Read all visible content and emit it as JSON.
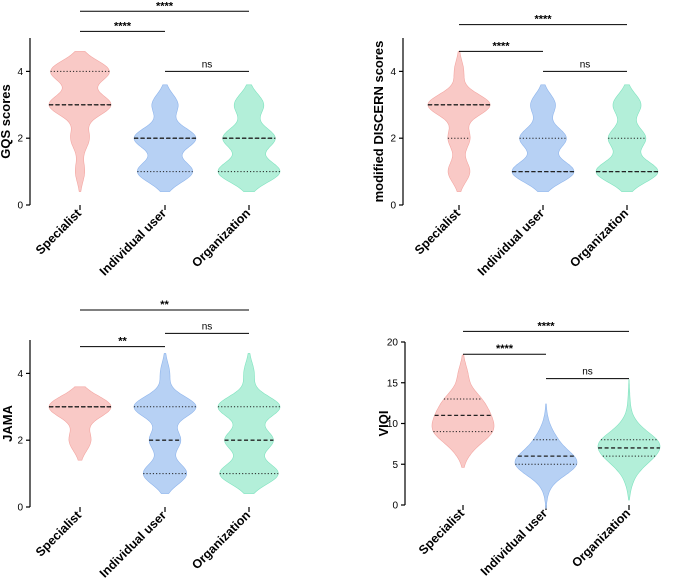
{
  "chart_data": [
    {
      "type": "violin",
      "ylabel": "GQS scores",
      "categories": [
        "Specialist",
        "Individual user",
        "Organization"
      ],
      "yticks": [
        0,
        2,
        4
      ],
      "ylim": [
        0,
        5
      ],
      "colors": [
        "#f9c9c6",
        "#b7d1f4",
        "#b3efd9"
      ],
      "series": [
        {
          "name": "Specialist",
          "densities": [
            [
              1,
              0.15
            ],
            [
              2,
              0.3
            ],
            [
              3,
              1
            ],
            [
              4,
              0.95
            ]
          ],
          "median": 3,
          "quartiles": [
            3,
            4
          ]
        },
        {
          "name": "Individual user",
          "densities": [
            [
              1,
              0.85
            ],
            [
              2,
              0.95
            ],
            [
              3,
              0.4
            ]
          ],
          "median": 2,
          "quartiles": [
            1,
            2
          ]
        },
        {
          "name": "Organization",
          "densities": [
            [
              1,
              0.95
            ],
            [
              2,
              0.8
            ],
            [
              3,
              0.45
            ]
          ],
          "median": 2,
          "quartiles": [
            1,
            2
          ]
        }
      ],
      "comparisons": [
        {
          "from": 0,
          "to": 1,
          "label": "****",
          "y": 5.2
        },
        {
          "from": 1,
          "to": 2,
          "label": "ns",
          "y": 4
        },
        {
          "from": 0,
          "to": 2,
          "label": "****",
          "y": 5.8
        }
      ]
    },
    {
      "type": "violin",
      "ylabel": "modified DISCERN scores",
      "categories": [
        "Specialist",
        "Individual user",
        "Organization"
      ],
      "yticks": [
        0,
        2,
        4
      ],
      "ylim": [
        0,
        5
      ],
      "colors": [
        "#f9c9c6",
        "#b7d1f4",
        "#b3efd9"
      ],
      "series": [
        {
          "name": "Specialist",
          "densities": [
            [
              1,
              0.35
            ],
            [
              2,
              0.35
            ],
            [
              3,
              1
            ],
            [
              4,
              0.15
            ]
          ],
          "median": 3,
          "quartiles": [
            2,
            3
          ]
        },
        {
          "name": "Individual user",
          "densities": [
            [
              1,
              1
            ],
            [
              2,
              0.75
            ],
            [
              3,
              0.4
            ]
          ],
          "median": 1,
          "quartiles": [
            1,
            2
          ]
        },
        {
          "name": "Organization",
          "densities": [
            [
              1,
              1
            ],
            [
              2,
              0.6
            ],
            [
              3,
              0.45
            ]
          ],
          "median": 1,
          "quartiles": [
            1,
            2
          ]
        }
      ],
      "comparisons": [
        {
          "from": 0,
          "to": 1,
          "label": "****",
          "y": 4.6
        },
        {
          "from": 1,
          "to": 2,
          "label": "ns",
          "y": 4
        },
        {
          "from": 0,
          "to": 2,
          "label": "****",
          "y": 5.4
        }
      ]
    },
    {
      "type": "violin",
      "ylabel": "JAMA",
      "categories": [
        "Specialist",
        "Individual user",
        "Organization"
      ],
      "yticks": [
        0,
        2,
        4
      ],
      "ylim": [
        0,
        5
      ],
      "colors": [
        "#f9c9c6",
        "#b7d1f4",
        "#b3efd9"
      ],
      "series": [
        {
          "name": "Specialist",
          "densities": [
            [
              2,
              0.35
            ],
            [
              3,
              1
            ]
          ],
          "median": 3,
          "quartiles": [
            3,
            3
          ]
        },
        {
          "name": "Individual user",
          "densities": [
            [
              1,
              0.7
            ],
            [
              2,
              0.5
            ],
            [
              3,
              1
            ],
            [
              4,
              0.15
            ]
          ],
          "median": 2,
          "quartiles": [
            1,
            3
          ]
        },
        {
          "name": "Organization",
          "densities": [
            [
              1,
              0.85
            ],
            [
              2,
              0.7
            ],
            [
              3,
              0.9
            ],
            [
              4,
              0.15
            ]
          ],
          "median": 2,
          "quartiles": [
            1,
            3
          ]
        }
      ],
      "comparisons": [
        {
          "from": 0,
          "to": 1,
          "label": "**",
          "y": 4.8
        },
        {
          "from": 1,
          "to": 2,
          "label": "ns",
          "y": 5.2
        },
        {
          "from": 0,
          "to": 2,
          "label": "**",
          "y": 5.9
        }
      ]
    },
    {
      "type": "violin",
      "ylabel": "VIQI",
      "categories": [
        "Specialist",
        "Individual user",
        "Organization"
      ],
      "yticks": [
        0,
        5,
        10,
        15,
        20
      ],
      "ylim": [
        0,
        20
      ],
      "colors": [
        "#f9c9c6",
        "#b7d1f4",
        "#b3efd9"
      ],
      "series": [
        {
          "name": "Specialist",
          "densities": [
            [
              7,
              0.3
            ],
            [
              9,
              1
            ],
            [
              11,
              0.8
            ],
            [
              13,
              0.6
            ],
            [
              16,
              0.2
            ]
          ],
          "median": 11,
          "quartiles": [
            9,
            13
          ]
        },
        {
          "name": "Individual user",
          "densities": [
            [
              2,
              0.1
            ],
            [
              4,
              0.5
            ],
            [
              5,
              1
            ],
            [
              6,
              0.8
            ],
            [
              8,
              0.5
            ],
            [
              10,
              0.1
            ]
          ],
          "median": 6,
          "quartiles": [
            5,
            8
          ]
        },
        {
          "name": "Organization",
          "densities": [
            [
              3,
              0.15
            ],
            [
              5,
              0.4
            ],
            [
              6,
              0.55
            ],
            [
              7,
              0.6
            ],
            [
              8,
              1
            ],
            [
              10,
              0.25
            ],
            [
              13,
              0.05
            ]
          ],
          "median": 7,
          "quartiles": [
            6,
            8
          ]
        }
      ],
      "comparisons": [
        {
          "from": 0,
          "to": 1,
          "label": "****",
          "y": 18.5
        },
        {
          "from": 1,
          "to": 2,
          "label": "ns",
          "y": 15.5
        },
        {
          "from": 0,
          "to": 2,
          "label": "****",
          "y": 21.3
        }
      ]
    }
  ]
}
